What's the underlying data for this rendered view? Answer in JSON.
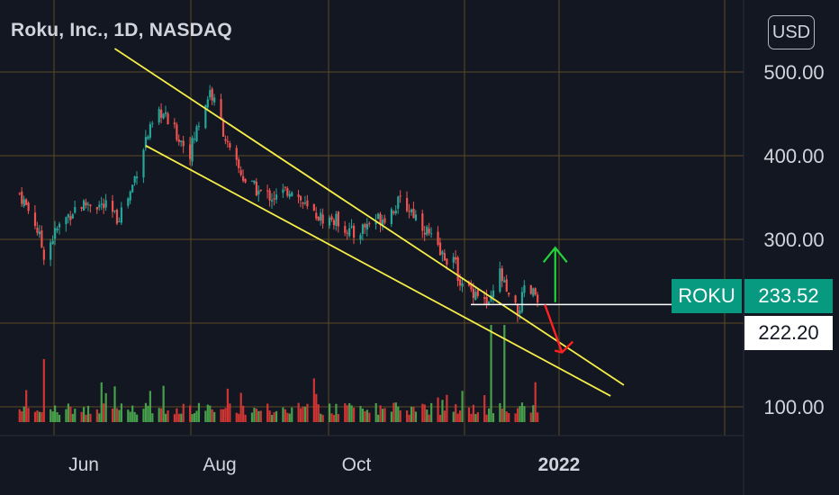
{
  "header": {
    "symbol_title": "Roku, Inc., 1D, NASDAQ",
    "currency_button": "USD"
  },
  "colors": {
    "background": "#131722",
    "grid": "#5d4a22",
    "up": "#26a69a",
    "down": "#ef5350",
    "vol_up": "#4caf50",
    "vol_down": "#e53935",
    "channel": "#f7ef48",
    "arrow_up": "#22d43a",
    "arrow_down": "#ff2020",
    "level_line": "#ffffff"
  },
  "price_badges": {
    "symbol": "ROKU",
    "last_price": "233.52",
    "level_price": "222.20"
  },
  "chart_data": {
    "type": "candlestick",
    "title": "Roku, Inc., 1D, NASDAQ",
    "y_axis": {
      "ticks": [
        "500.00",
        "400.00",
        "300.00",
        "100.00"
      ],
      "values": [
        500,
        400,
        300,
        100
      ],
      "ylim": [
        60,
        540
      ]
    },
    "x_axis": {
      "ticks": [
        "Jun",
        "Aug",
        "Oct",
        "2022"
      ]
    },
    "last_price": 233.52,
    "horizontal_level": 222.2,
    "close_anchors": [
      {
        "date": "2021-05-03",
        "close": 355
      },
      {
        "date": "2021-05-10",
        "close": 320
      },
      {
        "date": "2021-05-14",
        "close": 283
      },
      {
        "date": "2021-05-20",
        "close": 312
      },
      {
        "date": "2021-05-28",
        "close": 338
      },
      {
        "date": "2021-06-04",
        "close": 344
      },
      {
        "date": "2021-06-11",
        "close": 338
      },
      {
        "date": "2021-06-16",
        "close": 325
      },
      {
        "date": "2021-06-22",
        "close": 356
      },
      {
        "date": "2021-06-29",
        "close": 420
      },
      {
        "date": "2021-07-06",
        "close": 452
      },
      {
        "date": "2021-07-13",
        "close": 425
      },
      {
        "date": "2021-07-19",
        "close": 405
      },
      {
        "date": "2021-07-23",
        "close": 440
      },
      {
        "date": "2021-07-28",
        "close": 478
      },
      {
        "date": "2021-08-02",
        "close": 440
      },
      {
        "date": "2021-08-06",
        "close": 402
      },
      {
        "date": "2021-08-13",
        "close": 370
      },
      {
        "date": "2021-08-20",
        "close": 355
      },
      {
        "date": "2021-08-27",
        "close": 350
      },
      {
        "date": "2021-09-03",
        "close": 362
      },
      {
        "date": "2021-09-10",
        "close": 335
      },
      {
        "date": "2021-09-17",
        "close": 325
      },
      {
        "date": "2021-09-24",
        "close": 322
      },
      {
        "date": "2021-10-01",
        "close": 305
      },
      {
        "date": "2021-10-08",
        "close": 320
      },
      {
        "date": "2021-10-15",
        "close": 328
      },
      {
        "date": "2021-10-22",
        "close": 345
      },
      {
        "date": "2021-10-27",
        "close": 335
      },
      {
        "date": "2021-11-03",
        "close": 310
      },
      {
        "date": "2021-11-09",
        "close": 282
      },
      {
        "date": "2021-11-15",
        "close": 275
      },
      {
        "date": "2021-11-19",
        "close": 243
      },
      {
        "date": "2021-11-26",
        "close": 237
      },
      {
        "date": "2021-12-01",
        "close": 218
      },
      {
        "date": "2021-12-06",
        "close": 260
      },
      {
        "date": "2021-12-10",
        "close": 228
      },
      {
        "date": "2021-12-14",
        "close": 212
      },
      {
        "date": "2021-12-17",
        "close": 237
      },
      {
        "date": "2021-12-23",
        "close": 233.52
      }
    ],
    "volume_spikes": [
      {
        "date": "2021-05-14",
        "volume": "high"
      },
      {
        "date": "2021-12-02",
        "volume": "very high"
      },
      {
        "date": "2021-12-08",
        "volume": "very high"
      }
    ],
    "drawings": {
      "descending_channel_upper": [
        {
          "date": "2021-06-15",
          "price": 528
        },
        {
          "date": "2022-01-31",
          "price": 126
        }
      ],
      "descending_channel_lower": [
        {
          "date": "2021-06-29",
          "price": 412
        },
        {
          "date": "2022-01-25",
          "price": 113
        }
      ],
      "arrow_up": {
        "date": "2021-12-31",
        "from": 225,
        "to": 290
      },
      "arrow_down": {
        "date": "2021-12-30",
        "from": 222,
        "to": 165
      }
    }
  }
}
